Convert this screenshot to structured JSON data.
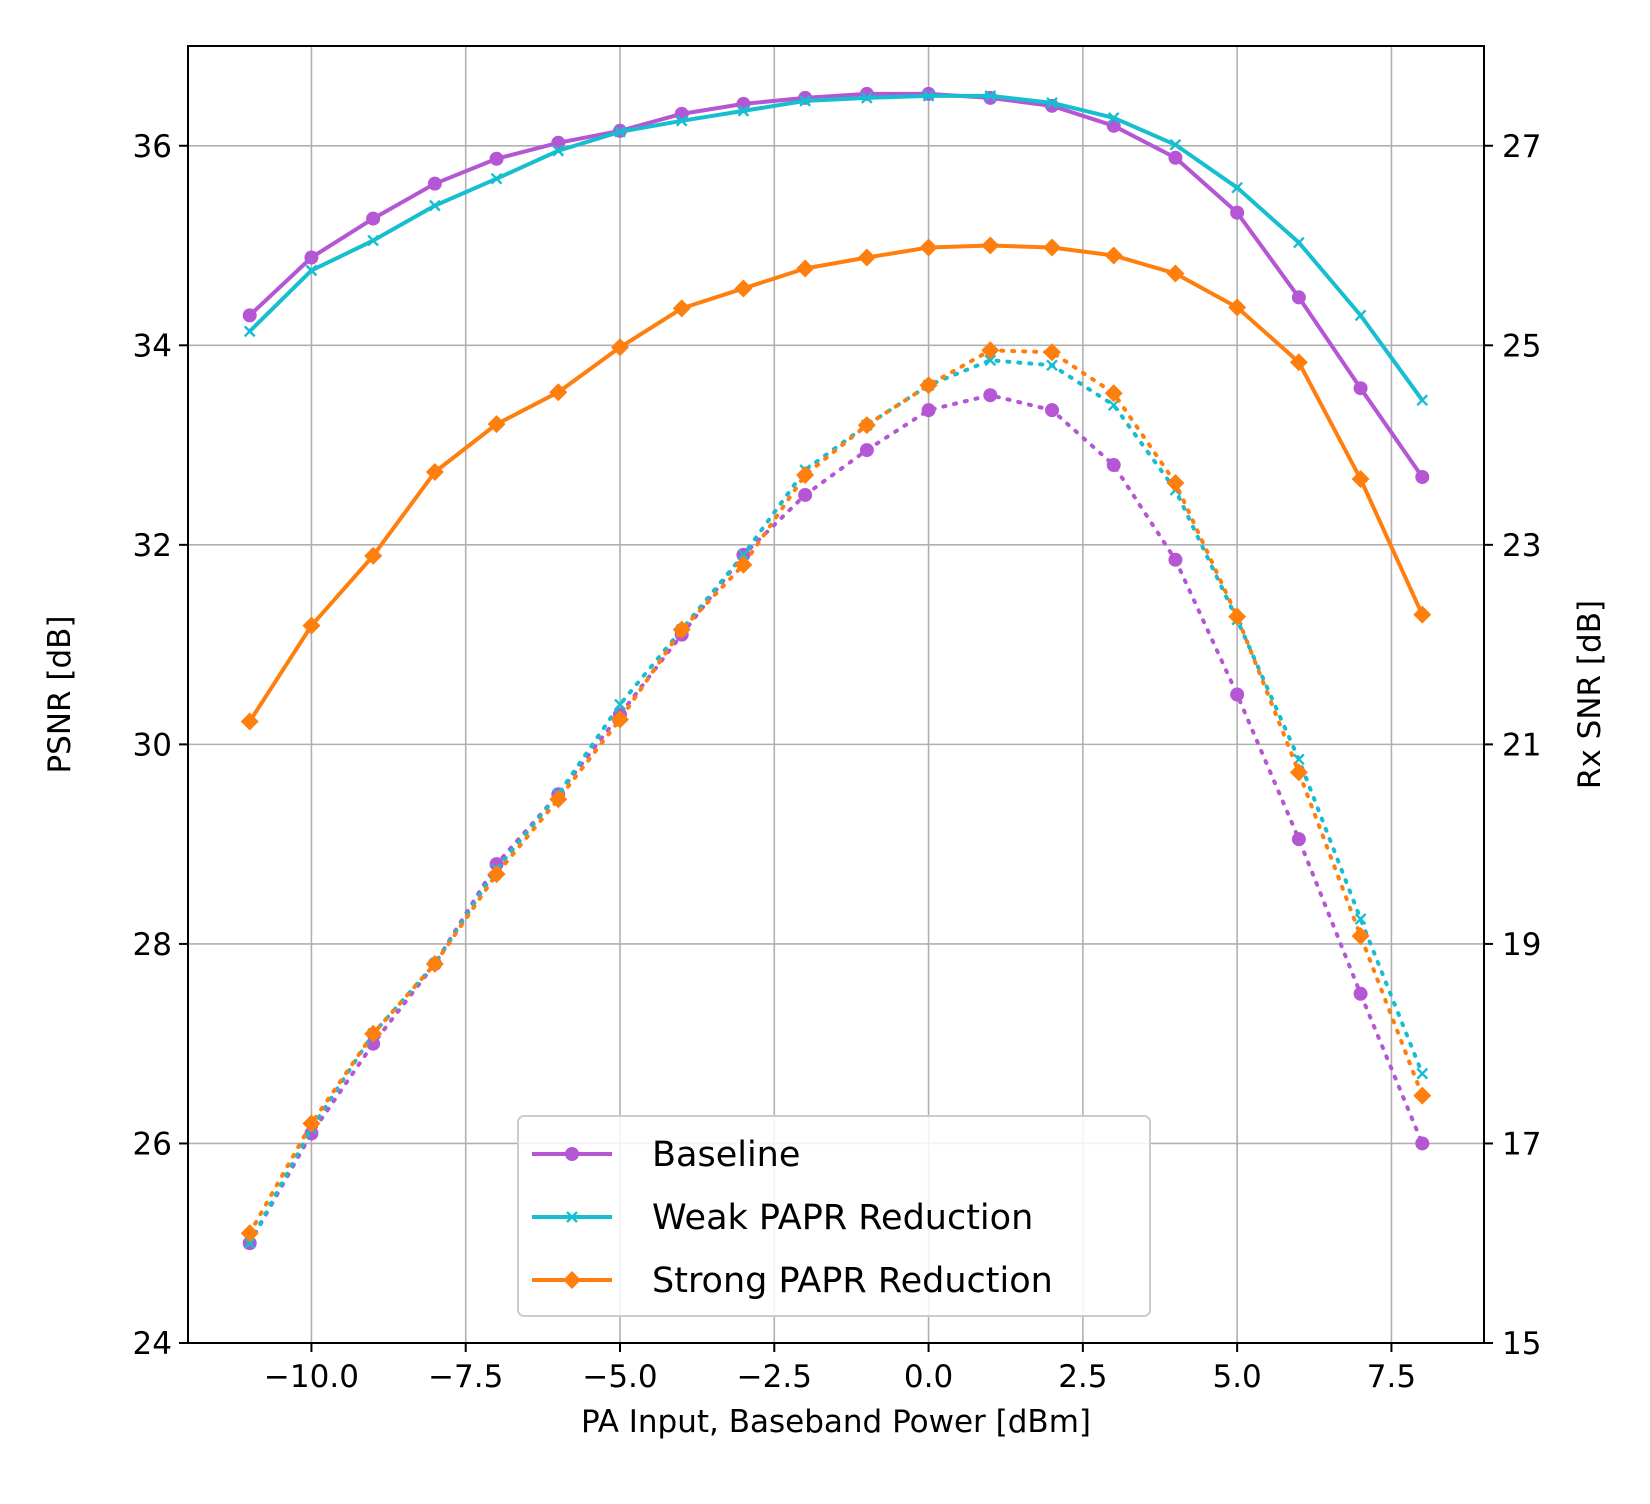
{
  "chart_data": {
    "type": "line",
    "xlabel": "PA Input, Baseband Power [dBm]",
    "ylabel": "PSNR [dB]",
    "y2label": "Rx SNR [dB]",
    "xlim": [
      -12,
      9
    ],
    "ylim": [
      24,
      37
    ],
    "y2lim": [
      15,
      28
    ],
    "grid": true,
    "legend_position": "lower-center",
    "x_ticks": [
      -10.0,
      -7.5,
      -5.0,
      -2.5,
      0.0,
      2.5,
      5.0,
      7.5
    ],
    "x_tick_labels": [
      "−10.0",
      "−7.5",
      "−5.0",
      "−2.5",
      "0.0",
      "2.5",
      "5.0",
      "7.5"
    ],
    "y_ticks": [
      24,
      26,
      28,
      30,
      32,
      34,
      36
    ],
    "y_tick_labels": [
      "24",
      "26",
      "28",
      "30",
      "32",
      "34",
      "36"
    ],
    "y2_ticks": [
      15,
      17,
      19,
      21,
      23,
      25,
      27
    ],
    "y2_tick_labels": [
      "15",
      "17",
      "19",
      "21",
      "23",
      "25",
      "27"
    ],
    "x": [
      -11,
      -10,
      -9,
      -8,
      -7,
      -6,
      -5,
      -4,
      -3,
      -2,
      -1,
      0,
      1,
      2,
      3,
      4,
      5,
      6,
      7,
      8
    ],
    "series": [
      {
        "name": "Baseline",
        "color": "#b556d4",
        "marker": "circle",
        "psnr": [
          34.3,
          34.88,
          35.27,
          35.62,
          35.87,
          36.03,
          36.15,
          36.32,
          36.42,
          36.48,
          36.52,
          36.52,
          36.48,
          36.4,
          36.2,
          35.88,
          35.33,
          34.48,
          33.57,
          32.68
        ],
        "rx_snr": [
          16.0,
          17.1,
          18.0,
          18.8,
          19.8,
          20.5,
          21.3,
          22.1,
          22.9,
          23.5,
          23.95,
          24.35,
          24.5,
          24.35,
          23.8,
          22.85,
          21.5,
          20.05,
          18.5,
          17.0
        ]
      },
      {
        "name": "Weak PAPR Reduction",
        "color": "#17becf",
        "marker": "x",
        "psnr": [
          34.14,
          34.75,
          35.05,
          35.4,
          35.67,
          35.95,
          36.14,
          36.25,
          36.35,
          36.45,
          36.48,
          36.5,
          36.5,
          36.43,
          36.28,
          36.01,
          35.58,
          35.03,
          34.3,
          33.45
        ],
        "rx_snr": [
          16.0,
          17.15,
          18.1,
          18.8,
          19.75,
          20.5,
          21.4,
          22.15,
          22.9,
          23.75,
          24.2,
          24.6,
          24.85,
          24.8,
          24.4,
          23.55,
          22.25,
          20.85,
          19.25,
          17.7
        ]
      },
      {
        "name": "Strong PAPR Reduction",
        "color": "#ff7f0e",
        "marker": "diamond",
        "psnr": [
          30.23,
          31.19,
          31.89,
          32.73,
          33.21,
          33.53,
          33.98,
          34.37,
          34.57,
          34.77,
          34.88,
          34.98,
          35.0,
          34.98,
          34.9,
          34.72,
          34.38,
          33.83,
          32.66,
          31.3
        ],
        "rx_snr": [
          16.1,
          17.2,
          18.1,
          18.8,
          19.7,
          20.45,
          21.25,
          22.15,
          22.8,
          23.7,
          24.2,
          24.6,
          24.95,
          24.93,
          24.52,
          23.62,
          22.28,
          20.72,
          19.08,
          17.48
        ]
      }
    ]
  }
}
